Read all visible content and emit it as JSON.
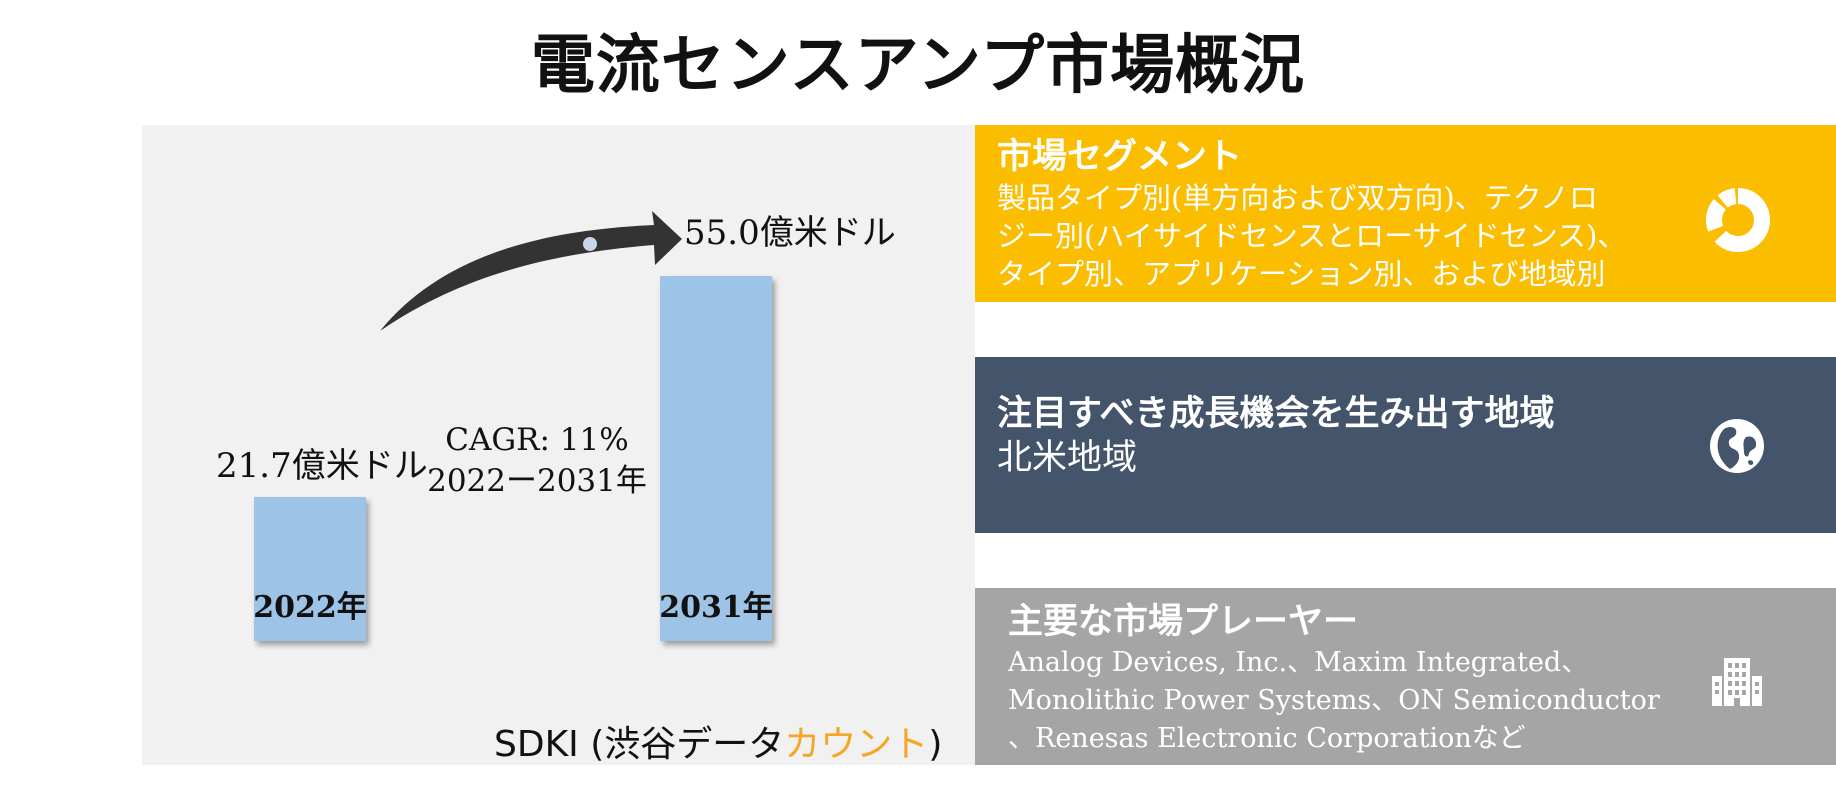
{
  "title": "電流センスアンプ市場概況",
  "chart_data": {
    "type": "bar",
    "categories": [
      "2022年",
      "2031年"
    ],
    "values": [
      21.7,
      55.0
    ],
    "value_labels": [
      "21.7億米ドル",
      "55.0億米ドル"
    ],
    "cagr_line1": "CAGR: 11%",
    "cagr_line2": "2022ー2031年",
    "bar_color": "#9dc3e6",
    "arrow_color": "#333333"
  },
  "source": {
    "prefix": "SDKI (渋谷データ",
    "highlight": "カウント",
    "suffix": ")",
    "highlight_color": "#f5a623"
  },
  "cards": {
    "segments": {
      "heading": "市場セグメント",
      "line1": "製品タイプ別(単方向および双方向)、テクノロ",
      "line2": "ジー別(ハイサイドセンスとローサイドセンス)、",
      "line3": "タイプ別、アプリケーション別、および地域別",
      "icon": "donut-chart-icon",
      "color": "#fbbd00"
    },
    "regions": {
      "heading": "注目すべき成長機会を生み出す地域",
      "line1": "北米地域",
      "icon": "globe-icon",
      "color": "#44546a"
    },
    "players": {
      "heading": "主要な市場プレーヤー",
      "line1": "Analog Devices, Inc.、Maxim Integrated、",
      "line2": "Monolithic Power Systems、ON Semiconductor",
      "line3": "、Renesas Electronic Corporationなど",
      "icon": "building-icon",
      "color": "#a5a5a5"
    }
  }
}
